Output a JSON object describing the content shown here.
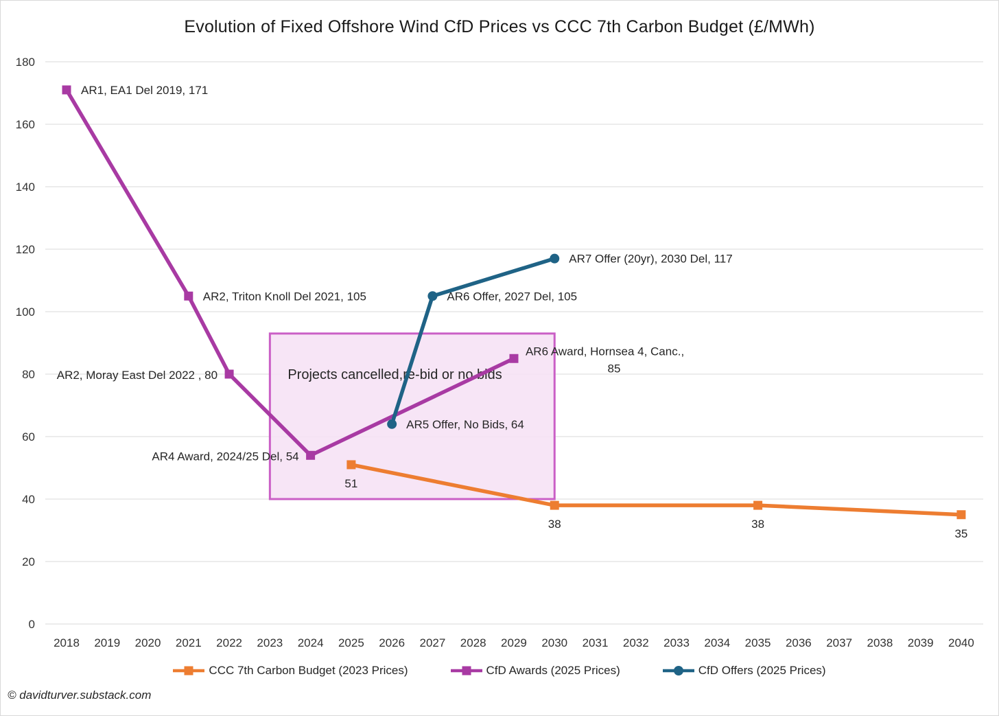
{
  "page": {
    "title": "Evolution of Fixed Offshore Wind CfD Prices vs CCC 7th Carbon Budget (£/MWh)",
    "footer": "© davidturver.substack.com"
  },
  "colors": {
    "ccc": "#ED7D31",
    "awards": "#A83AA3",
    "offers": "#1F6386",
    "gridline": "#D9D9D9",
    "box_fill": "#F6E1F5",
    "box_border": "#CA5FC6",
    "label_text": "#262626"
  },
  "chart_data": {
    "type": "line",
    "title": "Evolution of Fixed Offshore Wind CfD Prices vs CCC 7th Carbon Budget (£/MWh)",
    "xlabel": "",
    "ylabel": "",
    "ylim": [
      0,
      180
    ],
    "ytick_step": 20,
    "grid": true,
    "legend_position": "bottom",
    "x_ticks": [
      2018,
      2019,
      2020,
      2021,
      2022,
      2023,
      2024,
      2025,
      2026,
      2027,
      2028,
      2029,
      2030,
      2031,
      2032,
      2033,
      2034,
      2035,
      2036,
      2037,
      2038,
      2039,
      2040
    ],
    "series": [
      {
        "name": "CCC 7th Carbon Budget (2023 Prices)",
        "color_key": "ccc",
        "marker": "square",
        "points": [
          {
            "x": 2025,
            "y": 51,
            "label": "51",
            "label_pos": "below"
          },
          {
            "x": 2030,
            "y": 38,
            "label": "38",
            "label_pos": "below"
          },
          {
            "x": 2035,
            "y": 38,
            "label": "38",
            "label_pos": "below"
          },
          {
            "x": 2040,
            "y": 35,
            "label": "35",
            "label_pos": "below"
          }
        ]
      },
      {
        "name": "CfD Awards (2025 Prices)",
        "color_key": "awards",
        "marker": "square",
        "points": [
          {
            "x": 2018,
            "y": 171,
            "label": "AR1, EA1 Del 2019,  171",
            "label_pos": "right"
          },
          {
            "x": 2021,
            "y": 105,
            "label": "AR2, Triton Knoll Del 2021,  105",
            "label_pos": "right"
          },
          {
            "x": 2022,
            "y": 80,
            "label": "AR2, Moray East Del 2022 ,  80",
            "label_pos": "left"
          },
          {
            "x": 2024,
            "y": 54,
            "label": "AR4 Award, 2024/25 Del,  54",
            "label_pos": "left"
          },
          {
            "x": 2029,
            "y": 85,
            "label": "AR6 Award, Hornsea 4, Canc.,",
            "label2": "85",
            "label_pos": "right-wrap"
          }
        ]
      },
      {
        "name": "CfD Offers (2025 Prices)",
        "color_key": "offers",
        "marker": "circle",
        "points": [
          {
            "x": 2026,
            "y": 64,
            "label": "AR5 Offer, No Bids,  64",
            "label_pos": "right"
          },
          {
            "x": 2027,
            "y": 105,
            "label": "AR6 Offer, 2027 Del,  105",
            "label_pos": "right"
          },
          {
            "x": 2030,
            "y": 117,
            "label": "AR7 Offer (20yr), 2030 Del,  117",
            "label_pos": "right"
          }
        ]
      }
    ],
    "annotation_box": {
      "label": "Projects cancelled,re-bid or no bids",
      "x_range": [
        2023,
        2030
      ],
      "y_range": [
        40,
        93
      ]
    }
  }
}
